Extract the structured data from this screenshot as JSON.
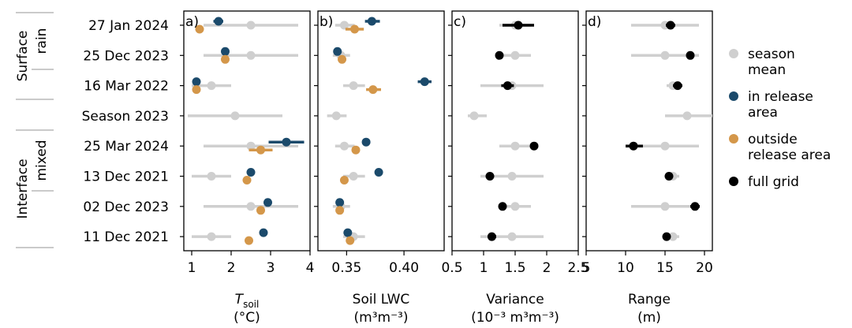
{
  "colors": {
    "season_mean": "#cfcfcf",
    "in_release": "#1b4a6b",
    "outside_release": "#d4974a",
    "full_grid": "#000000"
  },
  "rows": [
    "27 Jan 2024",
    "25 Dec 2023",
    "16 Mar 2022",
    "Season 2023",
    "25 Mar 2024",
    "13 Dec 2021",
    "02 Dec 2023",
    "11 Dec 2021"
  ],
  "groups": [
    {
      "outer": "Surface",
      "inner": "rain"
    },
    {
      "outer": "Interface",
      "inner": "mixed"
    }
  ],
  "legend": [
    {
      "label": [
        "season",
        "mean"
      ],
      "color": "#cfcfcf"
    },
    {
      "label": [
        "in release",
        "area"
      ],
      "color": "#1b4a6b"
    },
    {
      "label": [
        "outside",
        "release area"
      ],
      "color": "#d4974a"
    },
    {
      "label": [
        "full grid"
      ],
      "color": "#000000"
    }
  ],
  "chart_data": [
    {
      "type": "scatter",
      "panel_label": "a)",
      "xlabel": "T",
      "xlabel_sub": "soil",
      "xunit": "(°C)",
      "xlim": [
        0.8,
        4.0
      ],
      "xticks": [
        1,
        2,
        3,
        4
      ],
      "tick_labels": [
        "1",
        "2",
        "3",
        "4"
      ],
      "season_mean": [
        {
          "row": "27 Jan 2024",
          "x": 2.5,
          "lo": 1.3,
          "hi": 3.7
        },
        {
          "row": "25 Dec 2023",
          "x": 2.5,
          "lo": 1.3,
          "hi": 3.7
        },
        {
          "row": "16 Mar 2022",
          "x": 1.5,
          "lo": 1.0,
          "hi": 2.0
        },
        {
          "row": "Season 2023",
          "x": 2.1,
          "lo": 0.9,
          "hi": 3.3
        },
        {
          "row": "25 Mar 2024",
          "x": 2.5,
          "lo": 1.3,
          "hi": 3.7
        },
        {
          "row": "13 Dec 2021",
          "x": 1.5,
          "lo": 1.0,
          "hi": 2.0
        },
        {
          "row": "02 Dec 2023",
          "x": 2.5,
          "lo": 1.3,
          "hi": 3.7
        },
        {
          "row": "11 Dec 2021",
          "x": 1.5,
          "lo": 1.0,
          "hi": 2.0
        }
      ],
      "series": [
        {
          "id": "in_release",
          "points": [
            {
              "row": "27 Jan 2024",
              "x": 1.68,
              "lo": 1.55,
              "hi": 1.8
            },
            {
              "row": "25 Dec 2023",
              "x": 1.85
            },
            {
              "row": "16 Mar 2022",
              "x": 1.12
            },
            {
              "row": "25 Mar 2024",
              "x": 3.4,
              "lo": 2.95,
              "hi": 3.85
            },
            {
              "row": "13 Dec 2021",
              "x": 2.5
            },
            {
              "row": "02 Dec 2023",
              "x": 2.93
            },
            {
              "row": "11 Dec 2021",
              "x": 2.82
            }
          ]
        },
        {
          "id": "outside_release",
          "points": [
            {
              "row": "27 Jan 2024",
              "x": 1.2
            },
            {
              "row": "25 Dec 2023",
              "x": 1.85
            },
            {
              "row": "16 Mar 2022",
              "x": 1.12
            },
            {
              "row": "25 Mar 2024",
              "x": 2.75,
              "lo": 2.45,
              "hi": 3.05
            },
            {
              "row": "13 Dec 2021",
              "x": 2.4
            },
            {
              "row": "02 Dec 2023",
              "x": 2.75
            },
            {
              "row": "11 Dec 2021",
              "x": 2.45
            }
          ]
        }
      ]
    },
    {
      "type": "scatter",
      "panel_label": "b)",
      "xlabel": "Soil LWC",
      "xlabel_sub": "",
      "xunit": "(m³m⁻³)",
      "xlim": [
        0.325,
        0.435
      ],
      "xticks": [
        0.35,
        0.4
      ],
      "tick_labels": [
        "0.35",
        "0.40"
      ],
      "season_mean": [
        {
          "row": "27 Jan 2024",
          "x": 0.348,
          "lo": 0.34,
          "hi": 0.357
        },
        {
          "row": "25 Dec 2023",
          "x": 0.345,
          "lo": 0.338,
          "hi": 0.353
        },
        {
          "row": "16 Mar 2022",
          "x": 0.356,
          "lo": 0.347,
          "hi": 0.366
        },
        {
          "row": "Season 2023",
          "x": 0.341,
          "lo": 0.333,
          "hi": 0.35
        },
        {
          "row": "25 Mar 2024",
          "x": 0.348,
          "lo": 0.34,
          "hi": 0.357
        },
        {
          "row": "13 Dec 2021",
          "x": 0.356,
          "lo": 0.347,
          "hi": 0.366
        },
        {
          "row": "02 Dec 2023",
          "x": 0.345,
          "lo": 0.338,
          "hi": 0.353
        },
        {
          "row": "11 Dec 2021",
          "x": 0.356,
          "lo": 0.347,
          "hi": 0.366
        }
      ],
      "series": [
        {
          "id": "in_release",
          "points": [
            {
              "row": "27 Jan 2024",
              "x": 0.372,
              "lo": 0.366,
              "hi": 0.379
            },
            {
              "row": "25 Dec 2023",
              "x": 0.342
            },
            {
              "row": "16 Mar 2022",
              "x": 0.418,
              "lo": 0.412,
              "hi": 0.424
            },
            {
              "row": "25 Mar 2024",
              "x": 0.367
            },
            {
              "row": "13 Dec 2021",
              "x": 0.378
            },
            {
              "row": "02 Dec 2023",
              "x": 0.344
            },
            {
              "row": "11 Dec 2021",
              "x": 0.351
            }
          ]
        },
        {
          "id": "outside_release",
          "points": [
            {
              "row": "27 Jan 2024",
              "x": 0.357,
              "lo": 0.349,
              "hi": 0.365
            },
            {
              "row": "25 Dec 2023",
              "x": 0.346
            },
            {
              "row": "16 Mar 2022",
              "x": 0.373,
              "lo": 0.367,
              "hi": 0.38
            },
            {
              "row": "25 Mar 2024",
              "x": 0.358
            },
            {
              "row": "13 Dec 2021",
              "x": 0.348
            },
            {
              "row": "02 Dec 2023",
              "x": 0.344
            },
            {
              "row": "11 Dec 2021",
              "x": 0.353
            }
          ]
        }
      ]
    },
    {
      "type": "scatter",
      "panel_label": "c)",
      "xlabel": "Variance",
      "xlabel_sub": "",
      "xunit": "(10⁻³ m³m⁻³)",
      "xlim": [
        0.5,
        2.5
      ],
      "xticks": [
        0.5,
        1.0,
        1.5,
        2.0,
        2.5
      ],
      "tick_labels": [
        "0.5",
        "1",
        "1.5",
        "2",
        "2.5"
      ],
      "season_mean": [
        {
          "row": "27 Jan 2024",
          "x": 1.5,
          "lo": 1.25,
          "hi": 1.75
        },
        {
          "row": "25 Dec 2023",
          "x": 1.5,
          "lo": 1.25,
          "hi": 1.75
        },
        {
          "row": "16 Mar 2022",
          "x": 1.45,
          "lo": 0.95,
          "hi": 1.95
        },
        {
          "row": "Season 2023",
          "x": 0.85,
          "lo": 0.75,
          "hi": 1.05
        },
        {
          "row": "25 Mar 2024",
          "x": 1.5,
          "lo": 1.25,
          "hi": 1.75
        },
        {
          "row": "13 Dec 2021",
          "x": 1.45,
          "lo": 0.95,
          "hi": 1.95
        },
        {
          "row": "02 Dec 2023",
          "x": 1.5,
          "lo": 1.25,
          "hi": 1.75
        },
        {
          "row": "11 Dec 2021",
          "x": 1.45,
          "lo": 0.95,
          "hi": 1.95
        }
      ],
      "series": [
        {
          "id": "full_grid",
          "points": [
            {
              "row": "27 Jan 2024",
              "x": 1.55,
              "lo": 1.3,
              "hi": 1.8
            },
            {
              "row": "25 Dec 2023",
              "x": 1.25
            },
            {
              "row": "16 Mar 2022",
              "x": 1.38,
              "lo": 1.28,
              "hi": 1.48
            },
            {
              "row": "25 Mar 2024",
              "x": 1.8,
              "lo": 1.74,
              "hi": 1.86
            },
            {
              "row": "13 Dec 2021",
              "x": 1.1,
              "lo": 1.05,
              "hi": 1.15
            },
            {
              "row": "02 Dec 2023",
              "x": 1.3
            },
            {
              "row": "11 Dec 2021",
              "x": 1.13,
              "lo": 1.07,
              "hi": 1.2
            }
          ]
        }
      ]
    },
    {
      "type": "scatter",
      "panel_label": "d)",
      "xlabel": "Range",
      "xlabel_sub": "",
      "xunit": "(m)",
      "xlim": [
        5,
        21
      ],
      "xticks": [
        5,
        10,
        15,
        20
      ],
      "tick_labels": [
        "5",
        "10",
        "15",
        "20"
      ],
      "season_mean": [
        {
          "row": "27 Jan 2024",
          "x": 15,
          "lo": 10.7,
          "hi": 19.3
        },
        {
          "row": "25 Dec 2023",
          "x": 15,
          "lo": 10.7,
          "hi": 19.3
        },
        {
          "row": "16 Mar 2022",
          "x": 16,
          "lo": 15.2,
          "hi": 16.8
        },
        {
          "row": "Season 2023",
          "x": 17.8,
          "lo": 15,
          "hi": 21
        },
        {
          "row": "25 Mar 2024",
          "x": 15,
          "lo": 10.7,
          "hi": 19.3
        },
        {
          "row": "13 Dec 2021",
          "x": 16,
          "lo": 15.2,
          "hi": 16.8
        },
        {
          "row": "02 Dec 2023",
          "x": 15,
          "lo": 10.7,
          "hi": 19.3
        },
        {
          "row": "11 Dec 2021",
          "x": 16,
          "lo": 15.2,
          "hi": 16.8
        }
      ],
      "series": [
        {
          "id": "full_grid",
          "points": [
            {
              "row": "27 Jan 2024",
              "x": 15.7,
              "lo": 15.1,
              "hi": 16.3
            },
            {
              "row": "25 Dec 2023",
              "x": 18.2
            },
            {
              "row": "16 Mar 2022",
              "x": 16.6,
              "lo": 16.0,
              "hi": 17.2
            },
            {
              "row": "25 Mar 2024",
              "x": 11.0,
              "lo": 10.0,
              "hi": 12.2
            },
            {
              "row": "13 Dec 2021",
              "x": 15.5,
              "lo": 15.1,
              "hi": 15.9
            },
            {
              "row": "02 Dec 2023",
              "x": 18.8,
              "lo": 18.2,
              "hi": 19.4
            },
            {
              "row": "11 Dec 2021",
              "x": 15.2,
              "lo": 14.7,
              "hi": 15.7
            }
          ]
        }
      ]
    }
  ]
}
